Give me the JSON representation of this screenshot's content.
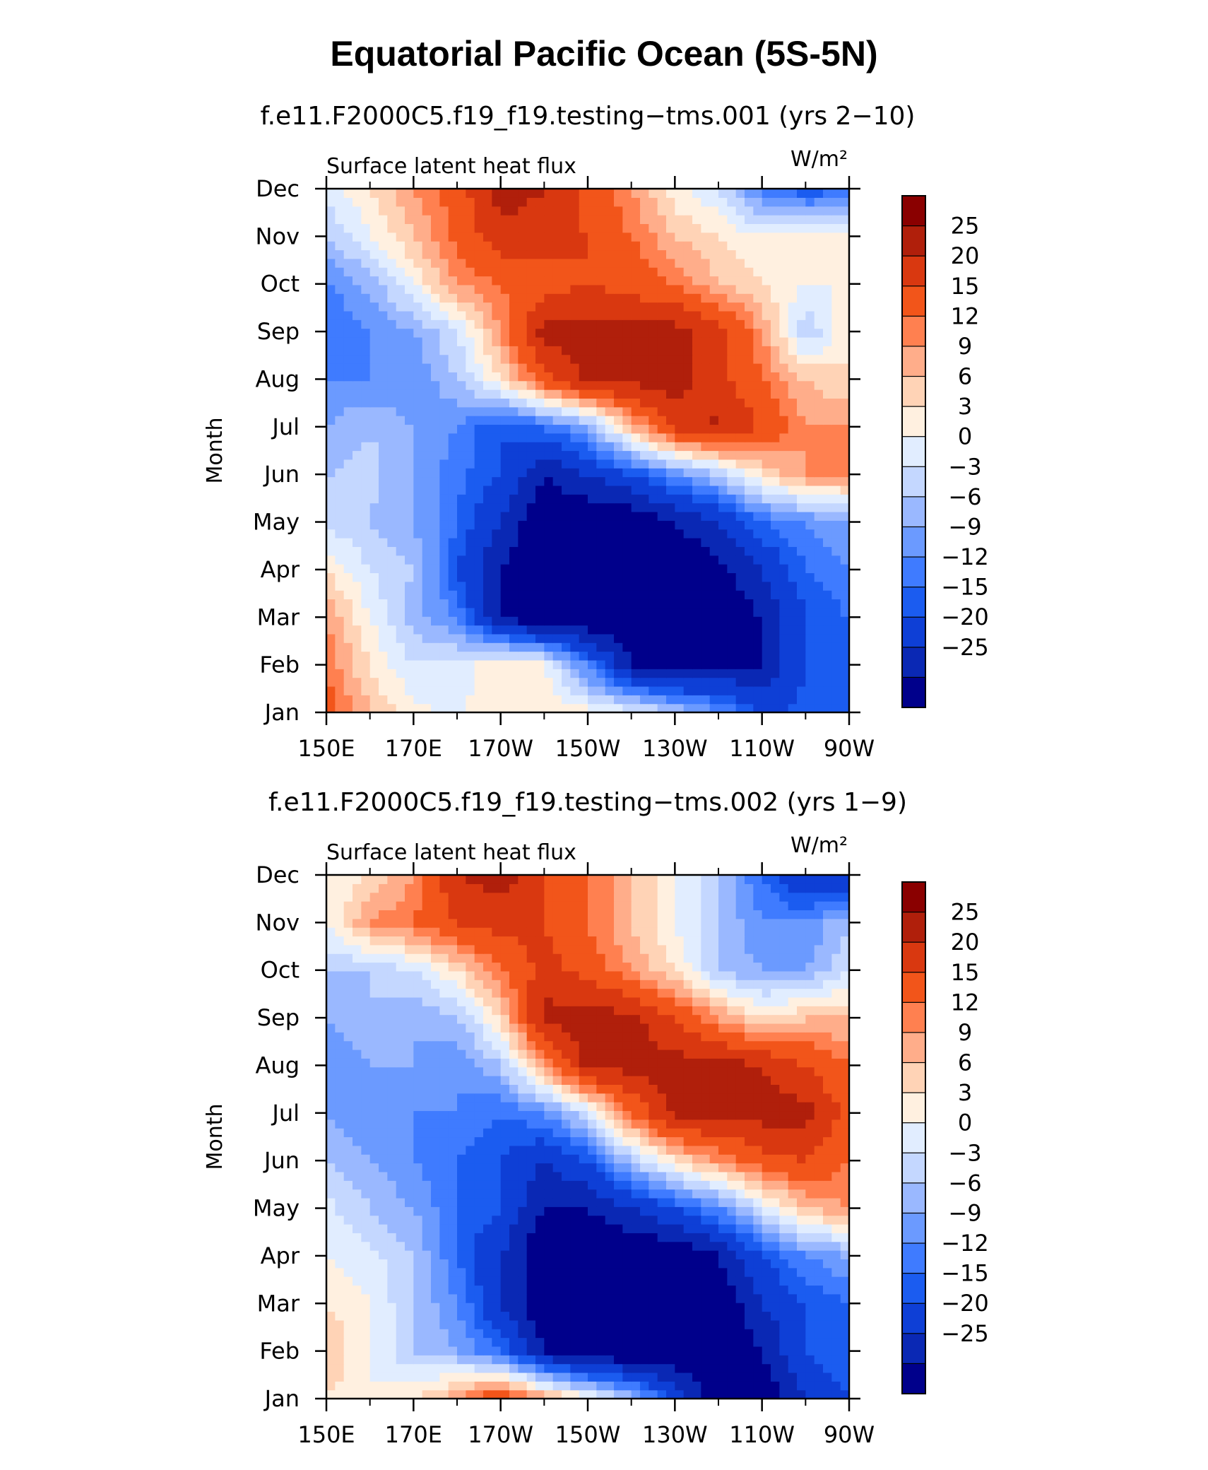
{
  "title": "Equatorial Pacific Ocean (5S-5N)",
  "chart_data": [
    {
      "type": "heatmap",
      "title": "f.e11.F2000C5.f19_f19.testing−tms.001 (yrs 2−10)",
      "variable": "Surface latent heat flux",
      "units": "W/m²",
      "ylabel": "Month",
      "xlabel": "",
      "x_ticks": [
        "150E",
        "170E",
        "170W",
        "150W",
        "130W",
        "110W",
        "90W"
      ],
      "y_ticks": [
        "Jan",
        "Feb",
        "Mar",
        "Apr",
        "May",
        "Jun",
        "Jul",
        "Aug",
        "Sep",
        "Oct",
        "Nov",
        "Dec"
      ],
      "colorbar_labels": [
        "25",
        "20",
        "15",
        "12",
        "9",
        "6",
        "3",
        "0",
        "−3",
        "−6",
        "−9",
        "−12",
        "−15",
        "−20",
        "−25"
      ],
      "grid": [
        [
          18,
          9,
          4,
          2,
          6,
          6,
          4,
          2,
          -2,
          -8,
          -15,
          -14,
          -12
        ],
        [
          14,
          6,
          0,
          1,
          6,
          3,
          -10,
          -25,
          -30,
          -25,
          -25,
          -15,
          -12
        ],
        [
          12,
          3,
          -5,
          -9,
          -25,
          -30,
          -30,
          -30,
          -30,
          -30,
          -25,
          -15,
          -12
        ],
        [
          6,
          0,
          -3,
          -15,
          -25,
          -30,
          -30,
          -30,
          -30,
          -27,
          -20,
          -12,
          -9
        ],
        [
          -1,
          -3,
          -6,
          -12,
          -20,
          -30,
          -30,
          -30,
          -25,
          -20,
          -12,
          -9,
          -6
        ],
        [
          -3,
          -2,
          -6,
          -11,
          -15,
          -25,
          -20,
          -15,
          -9,
          -3,
          6,
          12,
          12
        ],
        [
          -6,
          -3,
          -6,
          -9,
          -15,
          -12,
          -6,
          9,
          22,
          26,
          20,
          12,
          12
        ],
        [
          -9,
          -9,
          -9,
          -3,
          6,
          18,
          27,
          27,
          27,
          22,
          15,
          9,
          6
        ],
        [
          -12,
          -9,
          -6,
          0,
          12,
          27,
          27,
          27,
          27,
          22,
          12,
          -3,
          6
        ],
        [
          -10,
          -5,
          3,
          12,
          15,
          18,
          20,
          18,
          15,
          9,
          6,
          3,
          3
        ],
        [
          -3,
          3,
          9,
          16,
          23,
          22,
          20,
          15,
          9,
          6,
          3,
          6,
          3
        ],
        [
          1,
          6,
          12,
          17,
          28,
          25,
          18,
          12,
          4,
          0,
          -10,
          -15,
          -12
        ]
      ]
    },
    {
      "type": "heatmap",
      "title": "f.e11.F2000C5.f19_f19.testing−tms.002 (yrs 1−9)",
      "variable": "Surface latent heat flux",
      "units": "W/m²",
      "ylabel": "Month",
      "xlabel": "",
      "x_ticks": [
        "150E",
        "170E",
        "170W",
        "150W",
        "130W",
        "110W",
        "90W"
      ],
      "y_ticks": [
        "Jan",
        "Feb",
        "Mar",
        "Apr",
        "May",
        "Jun",
        "Jul",
        "Aug",
        "Sep",
        "Oct",
        "Nov",
        "Dec"
      ],
      "colorbar_labels": [
        "25",
        "20",
        "15",
        "12",
        "9",
        "6",
        "3",
        "0",
        "−3",
        "−6",
        "−9",
        "−12",
        "−15",
        "−20",
        "−25"
      ],
      "grid": [
        [
          6,
          3,
          6,
          12,
          20,
          12,
          4,
          -4,
          -15,
          -30,
          -30,
          -20,
          -15
        ],
        [
          9,
          3,
          -3,
          -6,
          -12,
          -25,
          -30,
          -30,
          -30,
          -30,
          -25,
          -15,
          -12
        ],
        [
          6,
          3,
          -3,
          -9,
          -20,
          -30,
          -30,
          -30,
          -30,
          -30,
          -20,
          -15,
          -12
        ],
        [
          3,
          1,
          -3,
          -12,
          -20,
          -30,
          -30,
          -30,
          -30,
          -25,
          -15,
          -9,
          -6
        ],
        [
          1,
          -3,
          -6,
          -12,
          -15,
          -25,
          -25,
          -20,
          -15,
          -9,
          0,
          9,
          12
        ],
        [
          -3,
          -6,
          -9,
          -12,
          -15,
          -20,
          -15,
          -3,
          6,
          12,
          18,
          20,
          15
        ],
        [
          -6,
          -9,
          -9,
          -9,
          -12,
          -9,
          0,
          15,
          27,
          27,
          27,
          27,
          18
        ],
        [
          -9,
          -6,
          -6,
          -9,
          -3,
          12,
          27,
          27,
          27,
          27,
          25,
          20,
          15
        ],
        [
          -6,
          -3,
          -6,
          -3,
          6,
          27,
          27,
          27,
          20,
          12,
          6,
          9,
          9
        ],
        [
          -3,
          -3,
          0,
          6,
          15,
          22,
          18,
          12,
          6,
          -3,
          -6,
          -6,
          0
        ],
        [
          3,
          12,
          15,
          20,
          22,
          20,
          15,
          9,
          3,
          -3,
          -9,
          -9,
          -3
        ],
        [
          3,
          6,
          12,
          25,
          28,
          20,
          15,
          9,
          3,
          -3,
          -12,
          -20,
          -20
        ]
      ]
    }
  ]
}
